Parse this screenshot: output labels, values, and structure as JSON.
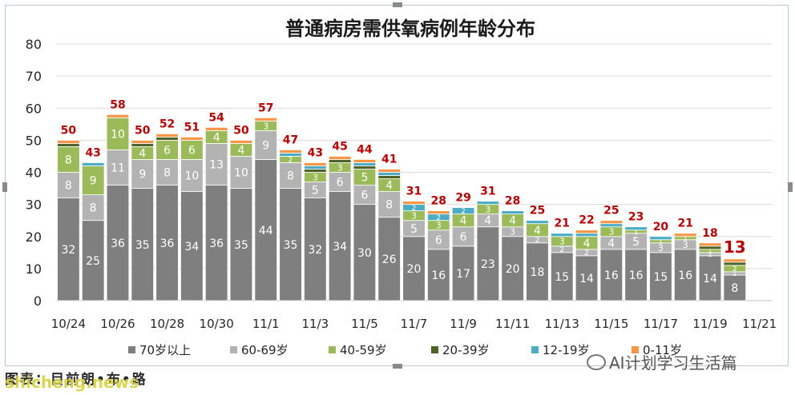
{
  "chart_data": {
    "type": "bar",
    "stacked": true,
    "title": "普通病房需供氧病例年龄分布",
    "ylim": [
      0,
      80
    ],
    "yticks": [
      0,
      10,
      20,
      30,
      40,
      50,
      60,
      70,
      80
    ],
    "grid": true,
    "legend_position": "bottom",
    "categories": [
      "10/24",
      "10/25",
      "10/26",
      "10/27",
      "10/28",
      "10/29",
      "10/30",
      "10/31",
      "11/1",
      "11/2",
      "11/3",
      "11/4",
      "11/5",
      "11/6",
      "11/7",
      "11/8",
      "11/9",
      "11/10",
      "11/11",
      "11/12",
      "11/13",
      "11/14",
      "11/15",
      "11/16",
      "11/17",
      "11/18",
      "11/19",
      "11/20",
      "11/21"
    ],
    "x_tick_labels": [
      "10/24",
      "",
      "10/26",
      "",
      "10/28",
      "",
      "10/30",
      "",
      "11/1",
      "",
      "11/3",
      "",
      "11/5",
      "",
      "11/7",
      "",
      "11/9",
      "",
      "11/11",
      "",
      "11/13",
      "",
      "11/15",
      "",
      "11/17",
      "",
      "11/19",
      "",
      "11/21"
    ],
    "totals": [
      50,
      43,
      58,
      50,
      52,
      51,
      54,
      50,
      57,
      47,
      43,
      45,
      44,
      41,
      31,
      28,
      29,
      31,
      28,
      25,
      21,
      22,
      25,
      23,
      20,
      21,
      18,
      13,
      null
    ],
    "series": [
      {
        "name": "70岁以上",
        "color": "#7f7f7f",
        "values": [
          32,
          25,
          36,
          35,
          36,
          34,
          36,
          35,
          44,
          35,
          32,
          34,
          30,
          26,
          20,
          16,
          17,
          23,
          20,
          18,
          15,
          14,
          16,
          16,
          15,
          16,
          14,
          8,
          null
        ]
      },
      {
        "name": "60-69岁",
        "color": "#b3b3b3",
        "values": [
          8,
          8,
          11,
          9,
          8,
          10,
          13,
          10,
          9,
          8,
          5,
          6,
          6,
          8,
          5,
          6,
          6,
          4,
          3,
          2,
          2,
          2,
          4,
          5,
          3,
          3,
          1,
          1,
          null
        ]
      },
      {
        "name": "40-59岁",
        "color": "#9bbb59",
        "values": [
          8,
          9,
          10,
          4,
          6,
          6,
          4,
          4,
          3,
          2,
          3,
          3,
          5,
          4,
          3,
          3,
          4,
          3,
          4,
          4,
          3,
          4,
          3,
          1,
          1,
          1,
          1,
          2,
          null
        ]
      },
      {
        "name": "20-39岁",
        "color": "#4f6228",
        "values": [
          1,
          0,
          0,
          1,
          1,
          0,
          0,
          0,
          0,
          0,
          1,
          1,
          1,
          1,
          0,
          0,
          0,
          0,
          0,
          0,
          0,
          0,
          0,
          0,
          0,
          0,
          1,
          1,
          null
        ]
      },
      {
        "name": "12-19岁",
        "color": "#4bacc6",
        "values": [
          0,
          1,
          0,
          0,
          0,
          0,
          0,
          0,
          0,
          1,
          1,
          0,
          1,
          1,
          2,
          2,
          2,
          1,
          1,
          1,
          1,
          1,
          1,
          1,
          1,
          0,
          0,
          0,
          null
        ]
      },
      {
        "name": "0-11岁",
        "color": "#f79646",
        "values": [
          1,
          0,
          1,
          1,
          1,
          1,
          1,
          1,
          1,
          1,
          1,
          1,
          1,
          1,
          1,
          1,
          0,
          0,
          0,
          0,
          0,
          1,
          1,
          0,
          0,
          1,
          1,
          1,
          null
        ]
      }
    ],
    "colors": {
      "total_label": "#c00000",
      "gridline": "#d9d9d9",
      "axis_text": "#262626"
    }
  },
  "footer": {
    "left_text": "图表：目前朗•布•路",
    "source_note": "shicheng.news",
    "watermark_text": "AI计划学习生活篇"
  }
}
